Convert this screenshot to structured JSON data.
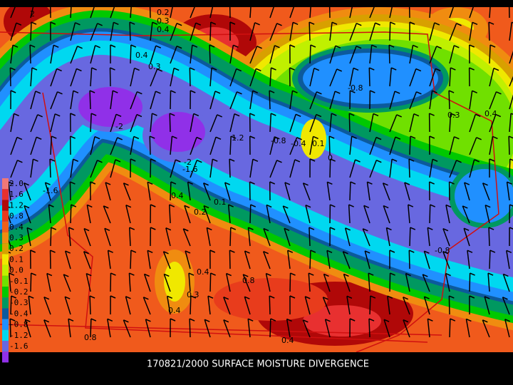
{
  "title": "170821/2000 SURFACE MOISTURE DIVERGENCE",
  "legend": [
    {
      "label": "2.0",
      "color": "#f07878"
    },
    {
      "label": "1.6",
      "color": "#e83030"
    },
    {
      "label": "1.2",
      "color": "#b00808"
    },
    {
      "label": "0.8",
      "color": "#e83c1c"
    },
    {
      "label": "0.4",
      "color": "#f0601c"
    },
    {
      "label": "0.3",
      "color": "#f08c10"
    },
    {
      "label": "0.2",
      "color": "#d8a000"
    },
    {
      "label": "0.1",
      "color": "#f0e800"
    },
    {
      "label": "0.0",
      "color": "#c0f000"
    },
    {
      "label": "-0.1",
      "color": "#70e000"
    },
    {
      "label": "-0.2",
      "color": "#00c800"
    },
    {
      "label": "-0.3",
      "color": "#009860"
    },
    {
      "label": "-0.4",
      "color": "#0c5a9c"
    },
    {
      "label": "-0.8",
      "color": "#2090ff"
    },
    {
      "label": "-1.2",
      "color": "#00d8f0"
    },
    {
      "label": "-1.6",
      "color": "#6868e0"
    },
    {
      "label": "-2.0",
      "color": "#9030e8"
    }
  ],
  "contour_labels": [
    "2",
    "0.2",
    "0.3",
    "0.4",
    "0.4",
    "0.3",
    "-0.8",
    "-2",
    "-2",
    "1.2",
    "-1.6",
    "-0.8",
    "-0.4",
    "0.1",
    "0",
    "0.4",
    "0.1",
    "0.2",
    "0.4",
    "0.3",
    "0.8",
    "0.4",
    "0.3",
    "0.4",
    "-0.8",
    "0.8",
    "0.4",
    "-1.6"
  ]
}
